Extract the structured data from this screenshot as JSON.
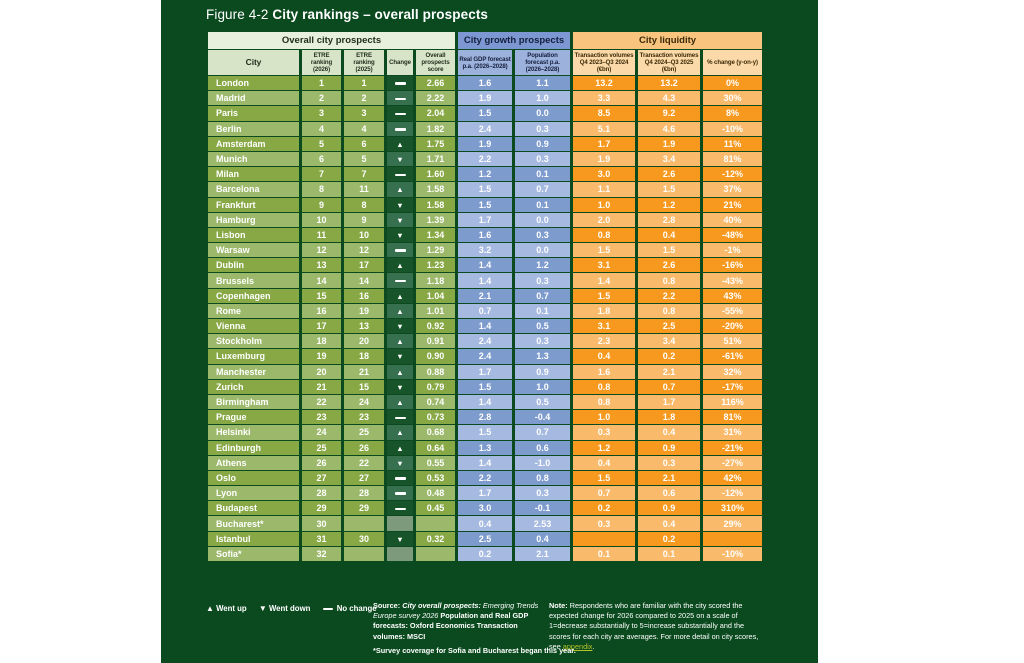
{
  "chart_data": {
    "type": "table",
    "title_prefix": "Figure 4-2 ",
    "title_main": "City rankings – overall prospects",
    "column_groups": [
      {
        "label": "Overall city prospects",
        "span": 5
      },
      {
        "label": "City growth prospects",
        "span": 2
      },
      {
        "label": "City liquidity",
        "span": 3
      }
    ],
    "columns": [
      "City",
      "ETRE ranking (2026)",
      "ETRE ranking (2025)",
      "Change",
      "Overall prospects score",
      "Real GDP forecast p.a. (2026–2028)",
      "Population forecast p.a. (2026–2028)",
      "Transaction volumes Q4 2023–Q3 2024 (€bn)",
      "Transaction volumes Q4 2024–Q3 2025 (€bn)",
      "% change (y-on-y)"
    ],
    "rows": [
      {
        "city": "London",
        "rank_2026": "1",
        "rank_2025": "1",
        "change": "same",
        "score": "2.66",
        "gdp": "1.6",
        "pop": "1.1",
        "tv_2024": "13.2",
        "tv_2025": "13.2",
        "pct": "0%"
      },
      {
        "city": "Madrid",
        "rank_2026": "2",
        "rank_2025": "2",
        "change": "same",
        "score": "2.22",
        "gdp": "1.9",
        "pop": "1.0",
        "tv_2024": "3.3",
        "tv_2025": "4.3",
        "pct": "30%"
      },
      {
        "city": "Paris",
        "rank_2026": "3",
        "rank_2025": "3",
        "change": "same",
        "score": "2.04",
        "gdp": "1.5",
        "pop": "0.0",
        "tv_2024": "8.5",
        "tv_2025": "9.2",
        "pct": "8%"
      },
      {
        "city": "Berlin",
        "rank_2026": "4",
        "rank_2025": "4",
        "change": "same",
        "score": "1.82",
        "gdp": "2.4",
        "pop": "0.3",
        "tv_2024": "5.1",
        "tv_2025": "4.6",
        "pct": "-10%"
      },
      {
        "city": "Amsterdam",
        "rank_2026": "5",
        "rank_2025": "6",
        "change": "up",
        "score": "1.75",
        "gdp": "1.9",
        "pop": "0.9",
        "tv_2024": "1.7",
        "tv_2025": "1.9",
        "pct": "11%"
      },
      {
        "city": "Munich",
        "rank_2026": "6",
        "rank_2025": "5",
        "change": "down",
        "score": "1.71",
        "gdp": "2.2",
        "pop": "0.3",
        "tv_2024": "1.9",
        "tv_2025": "3.4",
        "pct": "81%"
      },
      {
        "city": "Milan",
        "rank_2026": "7",
        "rank_2025": "7",
        "change": "same",
        "score": "1.60",
        "gdp": "1.2",
        "pop": "0.1",
        "tv_2024": "3.0",
        "tv_2025": "2.6",
        "pct": "-12%"
      },
      {
        "city": "Barcelona",
        "rank_2026": "8",
        "rank_2025": "11",
        "change": "up",
        "score": "1.58",
        "gdp": "1.5",
        "pop": "0.7",
        "tv_2024": "1.1",
        "tv_2025": "1.5",
        "pct": "37%"
      },
      {
        "city": "Frankfurt",
        "rank_2026": "9",
        "rank_2025": "8",
        "change": "down",
        "score": "1.58",
        "gdp": "1.5",
        "pop": "0.1",
        "tv_2024": "1.0",
        "tv_2025": "1.2",
        "pct": "21%"
      },
      {
        "city": "Hamburg",
        "rank_2026": "10",
        "rank_2025": "9",
        "change": "down",
        "score": "1.39",
        "gdp": "1.7",
        "pop": "0.0",
        "tv_2024": "2.0",
        "tv_2025": "2.8",
        "pct": "40%"
      },
      {
        "city": "Lisbon",
        "rank_2026": "11",
        "rank_2025": "10",
        "change": "down",
        "score": "1.34",
        "gdp": "1.6",
        "pop": "0.3",
        "tv_2024": "0.8",
        "tv_2025": "0.4",
        "pct": "-48%"
      },
      {
        "city": "Warsaw",
        "rank_2026": "12",
        "rank_2025": "12",
        "change": "same",
        "score": "1.29",
        "gdp": "3.2",
        "pop": "0.0",
        "tv_2024": "1.5",
        "tv_2025": "1.5",
        "pct": "-1%"
      },
      {
        "city": "Dublin",
        "rank_2026": "13",
        "rank_2025": "17",
        "change": "up",
        "score": "1.23",
        "gdp": "1.4",
        "pop": "1.2",
        "tv_2024": "3.1",
        "tv_2025": "2.6",
        "pct": "-16%"
      },
      {
        "city": "Brussels",
        "rank_2026": "14",
        "rank_2025": "14",
        "change": "same",
        "score": "1.18",
        "gdp": "1.4",
        "pop": "0.3",
        "tv_2024": "1.4",
        "tv_2025": "0.8",
        "pct": "-43%"
      },
      {
        "city": "Copenhagen",
        "rank_2026": "15",
        "rank_2025": "16",
        "change": "up",
        "score": "1.04",
        "gdp": "2.1",
        "pop": "0.7",
        "tv_2024": "1.5",
        "tv_2025": "2.2",
        "pct": "43%"
      },
      {
        "city": "Rome",
        "rank_2026": "16",
        "rank_2025": "19",
        "change": "up",
        "score": "1.01",
        "gdp": "0.7",
        "pop": "0.1",
        "tv_2024": "1.8",
        "tv_2025": "0.8",
        "pct": "-55%"
      },
      {
        "city": "Vienna",
        "rank_2026": "17",
        "rank_2025": "13",
        "change": "down",
        "score": "0.92",
        "gdp": "1.4",
        "pop": "0.5",
        "tv_2024": "3.1",
        "tv_2025": "2.5",
        "pct": "-20%"
      },
      {
        "city": "Stockholm",
        "rank_2026": "18",
        "rank_2025": "20",
        "change": "up",
        "score": "0.91",
        "gdp": "2.4",
        "pop": "0.3",
        "tv_2024": "2.3",
        "tv_2025": "3.4",
        "pct": "51%"
      },
      {
        "city": "Luxemburg",
        "rank_2026": "19",
        "rank_2025": "18",
        "change": "down",
        "score": "0.90",
        "gdp": "2.4",
        "pop": "1.3",
        "tv_2024": "0.4",
        "tv_2025": "0.2",
        "pct": "-61%"
      },
      {
        "city": "Manchester",
        "rank_2026": "20",
        "rank_2025": "21",
        "change": "up",
        "score": "0.88",
        "gdp": "1.7",
        "pop": "0.9",
        "tv_2024": "1.6",
        "tv_2025": "2.1",
        "pct": "32%"
      },
      {
        "city": "Zurich",
        "rank_2026": "21",
        "rank_2025": "15",
        "change": "down",
        "score": "0.79",
        "gdp": "1.5",
        "pop": "1.0",
        "tv_2024": "0.8",
        "tv_2025": "0.7",
        "pct": "-17%"
      },
      {
        "city": "Birmingham",
        "rank_2026": "22",
        "rank_2025": "24",
        "change": "up",
        "score": "0.74",
        "gdp": "1.4",
        "pop": "0.5",
        "tv_2024": "0.8",
        "tv_2025": "1.7",
        "pct": "116%"
      },
      {
        "city": "Prague",
        "rank_2026": "23",
        "rank_2025": "23",
        "change": "same",
        "score": "0.73",
        "gdp": "2.8",
        "pop": "-0.4",
        "tv_2024": "1.0",
        "tv_2025": "1.8",
        "pct": "81%"
      },
      {
        "city": "Helsinki",
        "rank_2026": "24",
        "rank_2025": "25",
        "change": "up",
        "score": "0.68",
        "gdp": "1.5",
        "pop": "0.7",
        "tv_2024": "0.3",
        "tv_2025": "0.4",
        "pct": "31%"
      },
      {
        "city": "Edinburgh",
        "rank_2026": "25",
        "rank_2025": "26",
        "change": "up",
        "score": "0.64",
        "gdp": "1.3",
        "pop": "0.6",
        "tv_2024": "1.2",
        "tv_2025": "0.9",
        "pct": "-21%"
      },
      {
        "city": "Athens",
        "rank_2026": "26",
        "rank_2025": "22",
        "change": "down",
        "score": "0.55",
        "gdp": "1.4",
        "pop": "-1.0",
        "tv_2024": "0.4",
        "tv_2025": "0.3",
        "pct": "-27%"
      },
      {
        "city": "Oslo",
        "rank_2026": "27",
        "rank_2025": "27",
        "change": "same",
        "score": "0.53",
        "gdp": "2.2",
        "pop": "0.8",
        "tv_2024": "1.5",
        "tv_2025": "2.1",
        "pct": "42%"
      },
      {
        "city": "Lyon",
        "rank_2026": "28",
        "rank_2025": "28",
        "change": "same",
        "score": "0.48",
        "gdp": "1.7",
        "pop": "0.3",
        "tv_2024": "0.7",
        "tv_2025": "0.6",
        "pct": "-12%"
      },
      {
        "city": "Budapest",
        "rank_2026": "29",
        "rank_2025": "29",
        "change": "same",
        "score": "0.45",
        "gdp": "3.0",
        "pop": "-0.1",
        "tv_2024": "0.2",
        "tv_2025": "0.9",
        "pct": "310%"
      },
      {
        "city": "Bucharest*",
        "rank_2026": "30",
        "rank_2025": "",
        "change": "none",
        "score": "",
        "gdp": "0.4",
        "pop": "2.53",
        "tv_2024": "0.3",
        "tv_2025": "0.4",
        "pct": "29%"
      },
      {
        "city": "Istanbul",
        "rank_2026": "31",
        "rank_2025": "30",
        "change": "down",
        "score": "0.32",
        "gdp": "2.5",
        "pop": "0.4",
        "tv_2024": "",
        "tv_2025": "0.2",
        "pct": ""
      },
      {
        "city": "Sofia*",
        "rank_2026": "32",
        "rank_2025": "",
        "change": "none",
        "score": "",
        "gdp": "0.2",
        "pop": "2.1",
        "tv_2024": "0.1",
        "tv_2025": "0.1",
        "pct": "-10%"
      }
    ]
  },
  "legend": {
    "up": "Went up",
    "down": "Went down",
    "none": "No change"
  },
  "source_segments": [
    {
      "text": "Source: ",
      "style": "bold"
    },
    {
      "text": "City overall prospects: ",
      "style": "bolditalic"
    },
    {
      "text": "Emerging Trends Europe survey 2026 ",
      "style": "italic"
    },
    {
      "text": "Population and Real GDP forecasts: Oxford Economics Transaction volumes: MSCI",
      "style": "bold"
    }
  ],
  "note_segments": [
    {
      "text": "Note: ",
      "style": "bold"
    },
    {
      "text": "Respondents who are familiar with the city scored the expected change for 2026 compared to 2025 on a scale of 1=decrease substantially to 5=increase substantially and the scores for each city are averages. For more detail on city scores, see ",
      "style": "normal"
    },
    {
      "text": "appendix",
      "style": "link"
    },
    {
      "text": ".",
      "style": "normal"
    }
  ],
  "footnote": "*Survey coverage for Sofia and Bucharest began this year.",
  "colors": {
    "panel_green": "#0b4a1f",
    "row_green_dark": "#87a845",
    "row_green_light": "#9cb96b",
    "row_blue_dark": "#7e9bce",
    "row_blue_light": "#a6b9e0",
    "row_orange_dark": "#f6991e",
    "row_orange_light": "#f9ba6b",
    "appendix_link": "#b5c327"
  }
}
